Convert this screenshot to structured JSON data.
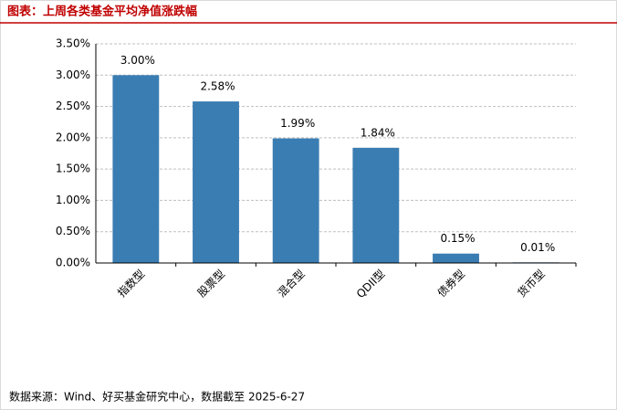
{
  "chart_data": {
    "type": "bar",
    "title": "图表：上周各类基金平均净值涨跌幅",
    "categories": [
      "指数型",
      "股票型",
      "混合型",
      "QDII型",
      "债券型",
      "货币型"
    ],
    "values": [
      3.0,
      2.58,
      1.99,
      1.84,
      0.15,
      0.01
    ],
    "value_labels": [
      "3.00%",
      "2.58%",
      "1.99%",
      "1.84%",
      "0.15%",
      "0.01%"
    ],
    "color": "#3a7db2",
    "ylim": [
      0,
      3.5
    ],
    "yticks": [
      {
        "value": 0,
        "label": "0.00%"
      },
      {
        "value": 0.5,
        "label": "0.50%"
      },
      {
        "value": 1,
        "label": "1.00%"
      },
      {
        "value": 1.5,
        "label": "1.50%"
      },
      {
        "value": 2,
        "label": "2.00%"
      },
      {
        "value": 2.5,
        "label": "2.50%"
      },
      {
        "value": 3,
        "label": "3.00%"
      },
      {
        "value": 3.5,
        "label": "3.50%"
      }
    ],
    "grid": true,
    "source": "数据来源：Wind、好买基金研究中心，数据截至 2025-6-27"
  }
}
